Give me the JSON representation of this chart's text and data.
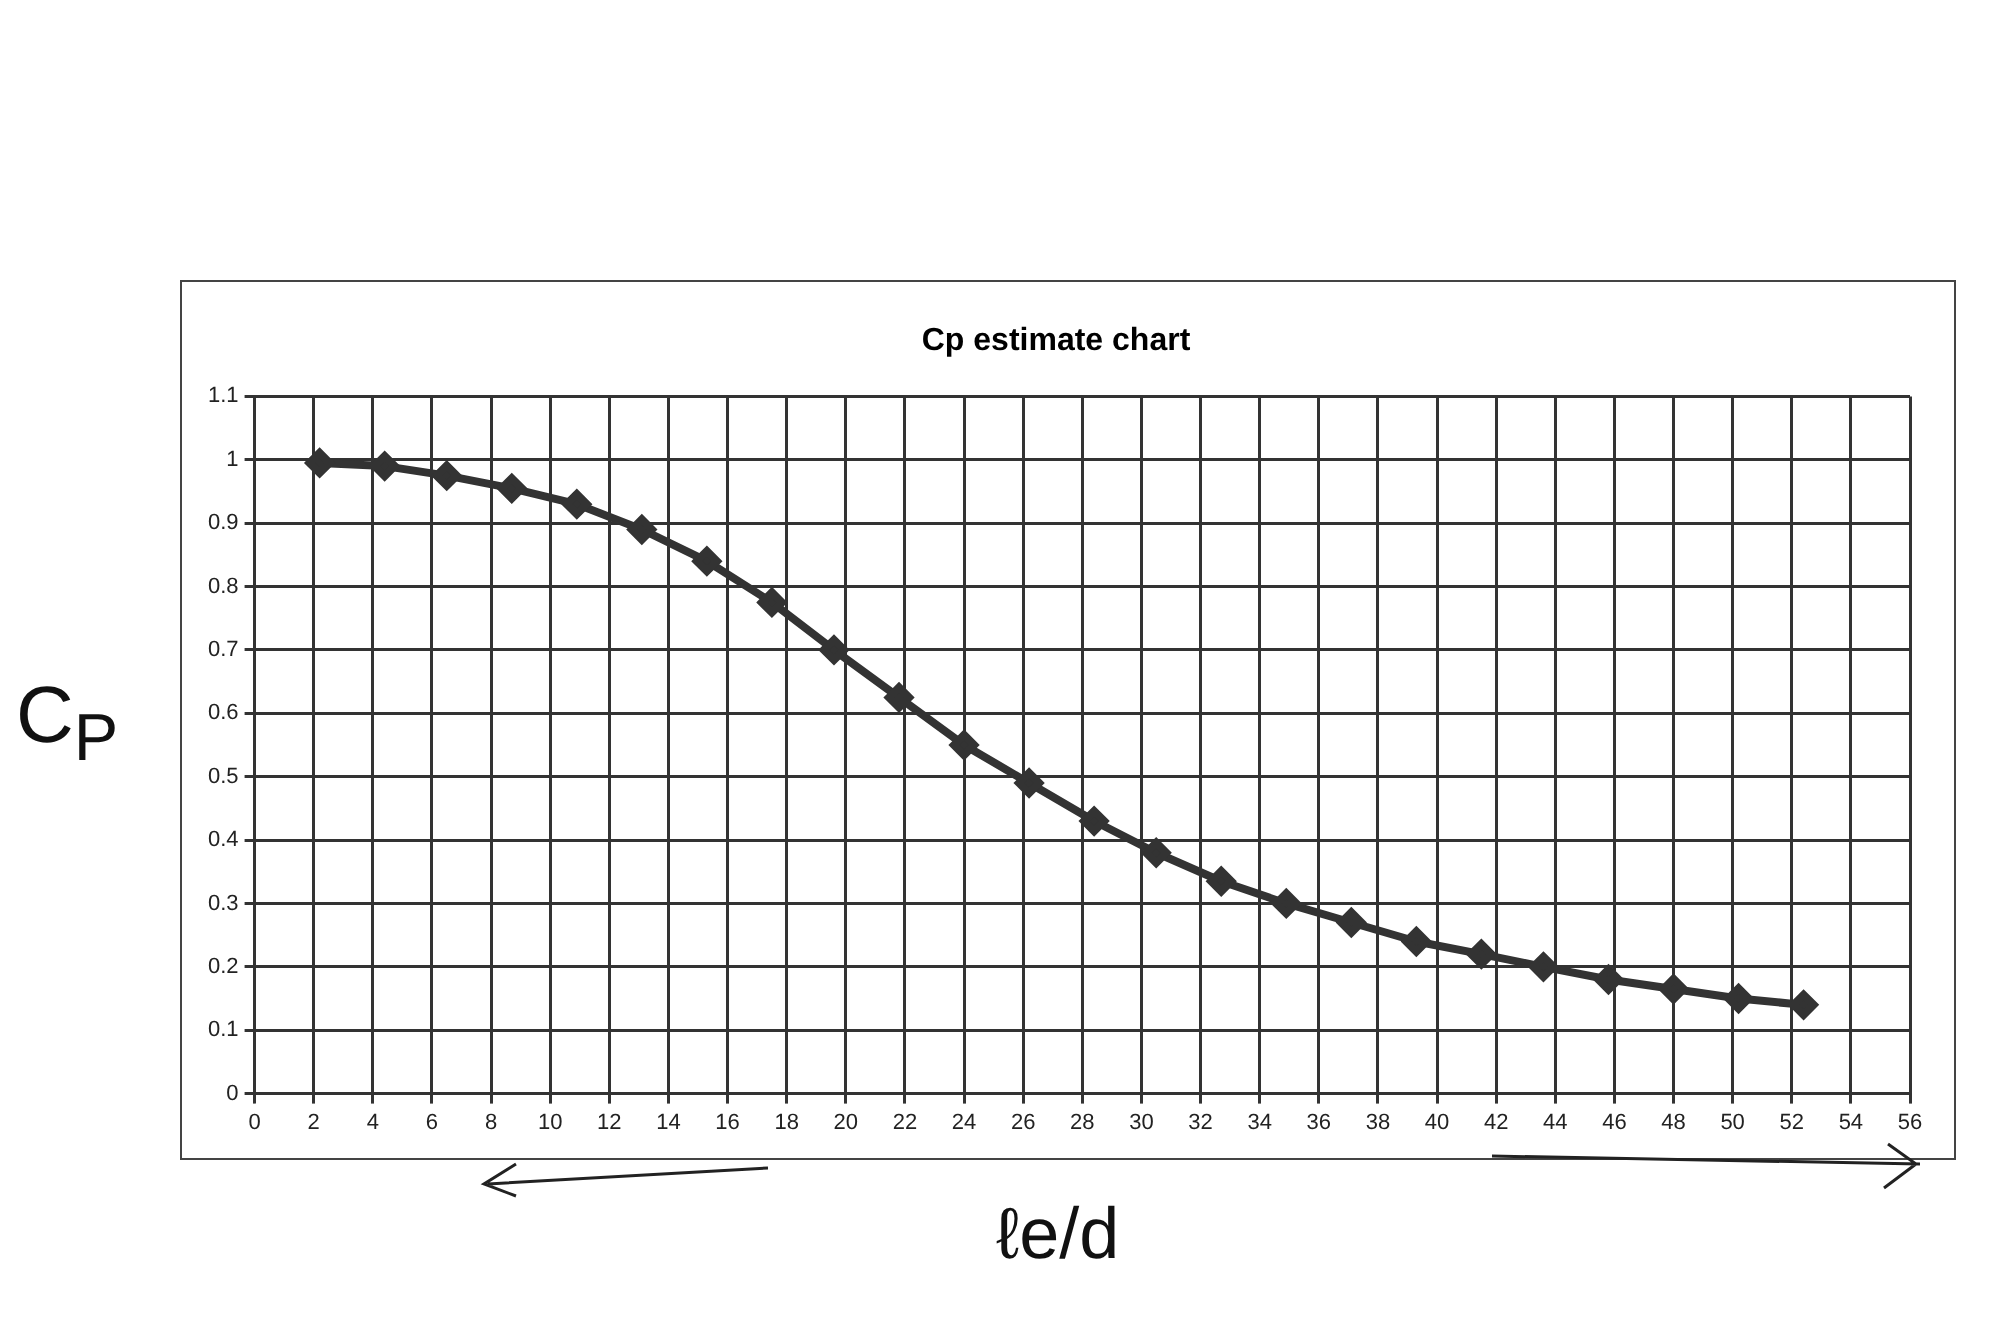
{
  "chart_data": {
    "type": "line",
    "title": "Cp estimate chart",
    "xlabel": "ℓe/d",
    "ylabel": "C$_{P}$",
    "x": [
      2.2,
      4.4,
      6.5,
      8.7,
      10.9,
      13.1,
      15.3,
      17.5,
      19.6,
      21.8,
      24,
      26.2,
      28.4,
      30.5,
      32.7,
      34.9,
      37.1,
      39.3,
      41.5,
      43.6,
      45.8,
      48,
      50.2,
      52.4
    ],
    "series": [
      {
        "color": "#333333",
        "values": [
          0.995,
          0.99,
          0.975,
          0.955,
          0.93,
          0.89,
          0.84,
          0.775,
          0.7,
          0.625,
          0.55,
          0.49,
          0.43,
          0.38,
          0.335,
          0.3,
          0.27,
          0.24,
          0.22,
          0.2,
          0.18,
          0.165,
          0.15,
          0.14
        ]
      }
    ],
    "xlim": [
      0,
      56
    ],
    "xticks": [
      0,
      2,
      4,
      6,
      8,
      10,
      12,
      14,
      16,
      18,
      20,
      22,
      24,
      26,
      28,
      30,
      32,
      34,
      36,
      38,
      40,
      42,
      44,
      46,
      48,
      50,
      52,
      54,
      56
    ],
    "ylim": [
      0,
      1.1
    ],
    "yticks": [
      0,
      0.1,
      0.2,
      0.3,
      0.4,
      0.5,
      0.6,
      0.7,
      0.8,
      0.9,
      1,
      1.1
    ],
    "grid": true,
    "legend": false,
    "marker": "diamond",
    "line_style": "solid"
  }
}
